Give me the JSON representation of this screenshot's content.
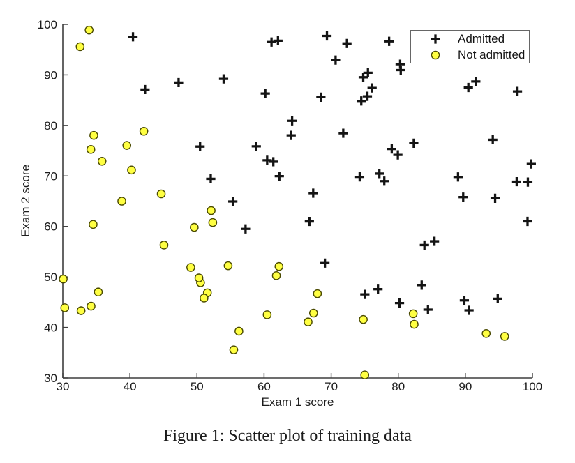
{
  "figure": {
    "caption": "Figure 1: Scatter plot of training data"
  },
  "colors": {
    "admitted": "#141414",
    "not_admitted_fill": "#ffff42",
    "not_admitted_edge": "#4a4a00",
    "axis": "#3d3d3d",
    "tick_text": "#1c1c1c",
    "legend_border": "#666666",
    "background": "#ffffff"
  },
  "chart_data": {
    "type": "scatter",
    "title": "",
    "xlabel": "Exam 1 score",
    "ylabel": "Exam 2 score",
    "xlim": [
      30,
      100
    ],
    "ylim": [
      30,
      100
    ],
    "xticks": [
      30,
      40,
      50,
      60,
      70,
      80,
      90,
      100
    ],
    "yticks": [
      30,
      40,
      50,
      60,
      70,
      80,
      90,
      100
    ],
    "grid": false,
    "legend_position": "top-right",
    "series": [
      {
        "name": "Admitted",
        "marker": "plus",
        "points": [
          [
            60.18,
            86.31
          ],
          [
            79.03,
            75.34
          ],
          [
            61.11,
            96.51
          ],
          [
            75.02,
            46.55
          ],
          [
            76.1,
            87.42
          ],
          [
            84.43,
            43.53
          ],
          [
            82.31,
            76.48
          ],
          [
            69.37,
            97.72
          ],
          [
            53.97,
            89.21
          ],
          [
            69.07,
            52.74
          ],
          [
            70.66,
            92.93
          ],
          [
            76.98,
            47.58
          ],
          [
            89.68,
            65.8
          ],
          [
            77.92,
            68.97
          ],
          [
            62.27,
            69.95
          ],
          [
            80.19,
            44.82
          ],
          [
            61.38,
            72.81
          ],
          [
            85.4,
            57.05
          ],
          [
            52.05,
            69.43
          ],
          [
            64.18,
            80.91
          ],
          [
            83.9,
            56.31
          ],
          [
            94.44,
            65.57
          ],
          [
            77.19,
            70.46
          ],
          [
            97.77,
            86.73
          ],
          [
            62.07,
            96.77
          ],
          [
            91.56,
            88.7
          ],
          [
            79.94,
            74.16
          ],
          [
            99.27,
            61.0
          ],
          [
            90.55,
            43.39
          ],
          [
            97.65,
            68.86
          ],
          [
            74.25,
            69.82
          ],
          [
            71.8,
            78.45
          ],
          [
            75.4,
            85.76
          ],
          [
            40.46,
            97.54
          ],
          [
            80.28,
            92.12
          ],
          [
            66.75,
            60.99
          ],
          [
            64.04,
            78.03
          ],
          [
            72.35,
            96.23
          ],
          [
            60.46,
            73.09
          ],
          [
            58.84,
            75.86
          ],
          [
            99.83,
            72.37
          ],
          [
            47.26,
            88.48
          ],
          [
            50.46,
            75.81
          ],
          [
            88.91,
            69.8
          ],
          [
            94.83,
            45.69
          ],
          [
            67.32,
            66.59
          ],
          [
            57.24,
            59.51
          ],
          [
            80.37,
            90.96
          ],
          [
            68.47,
            85.59
          ],
          [
            75.48,
            90.42
          ],
          [
            78.64,
            96.65
          ],
          [
            94.09,
            77.16
          ],
          [
            90.45,
            87.51
          ],
          [
            74.49,
            84.85
          ],
          [
            89.85,
            45.36
          ],
          [
            83.49,
            48.38
          ],
          [
            42.26,
            87.1
          ],
          [
            99.32,
            68.78
          ],
          [
            55.34,
            64.93
          ],
          [
            74.78,
            89.53
          ]
        ]
      },
      {
        "name": "Not admitted",
        "marker": "circle",
        "points": [
          [
            34.62,
            78.02
          ],
          [
            30.29,
            43.89
          ],
          [
            35.85,
            72.9
          ],
          [
            45.08,
            56.32
          ],
          [
            95.86,
            38.23
          ],
          [
            75.01,
            30.6
          ],
          [
            39.54,
            76.04
          ],
          [
            67.95,
            46.68
          ],
          [
            67.37,
            42.84
          ],
          [
            50.53,
            48.86
          ],
          [
            34.21,
            44.21
          ],
          [
            93.11,
            38.8
          ],
          [
            61.83,
            50.26
          ],
          [
            38.79,
            65.0
          ],
          [
            52.11,
            63.13
          ],
          [
            40.24,
            71.17
          ],
          [
            54.64,
            52.21
          ],
          [
            33.92,
            98.87
          ],
          [
            74.79,
            41.57
          ],
          [
            34.18,
            75.24
          ],
          [
            51.55,
            46.86
          ],
          [
            82.37,
            40.62
          ],
          [
            51.05,
            45.82
          ],
          [
            62.22,
            52.06
          ],
          [
            34.52,
            60.4
          ],
          [
            50.29,
            49.8
          ],
          [
            49.59,
            59.81
          ],
          [
            32.58,
            95.6
          ],
          [
            35.29,
            47.02
          ],
          [
            56.25,
            39.26
          ],
          [
            30.06,
            49.59
          ],
          [
            44.67,
            66.45
          ],
          [
            66.56,
            41.09
          ],
          [
            49.07,
            51.88
          ],
          [
            32.72,
            43.31
          ],
          [
            60.46,
            42.51
          ],
          [
            82.23,
            42.72
          ],
          [
            42.08,
            78.84
          ],
          [
            52.35,
            60.77
          ],
          [
            55.48,
            35.57
          ]
        ]
      }
    ]
  }
}
